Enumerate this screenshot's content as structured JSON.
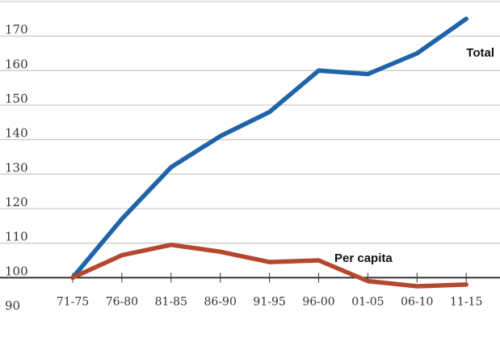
{
  "chart_data": {
    "type": "line",
    "title": "",
    "xlabel": "",
    "ylabel": "",
    "categories": [
      "71-75",
      "76-80",
      "81-85",
      "86-90",
      "91-95",
      "96-00",
      "01-05",
      "06-10",
      "11-15"
    ],
    "ylim": [
      90,
      180
    ],
    "yticks": [
      90,
      100,
      110,
      120,
      130,
      140,
      150,
      160,
      170,
      180
    ],
    "baseline": 100,
    "grid": true,
    "series": [
      {
        "name": "Total",
        "color": "#1f63a8",
        "values": [
          100,
          117,
          132,
          141,
          148,
          160,
          159,
          165,
          175
        ]
      },
      {
        "name": "Per capita",
        "color": "#b5472f",
        "values": [
          100,
          106.5,
          109.5,
          107.5,
          104.5,
          105,
          99,
          97.5,
          98
        ]
      }
    ],
    "colors": {
      "grid": "#cccccc",
      "baseline": "#333333"
    }
  }
}
